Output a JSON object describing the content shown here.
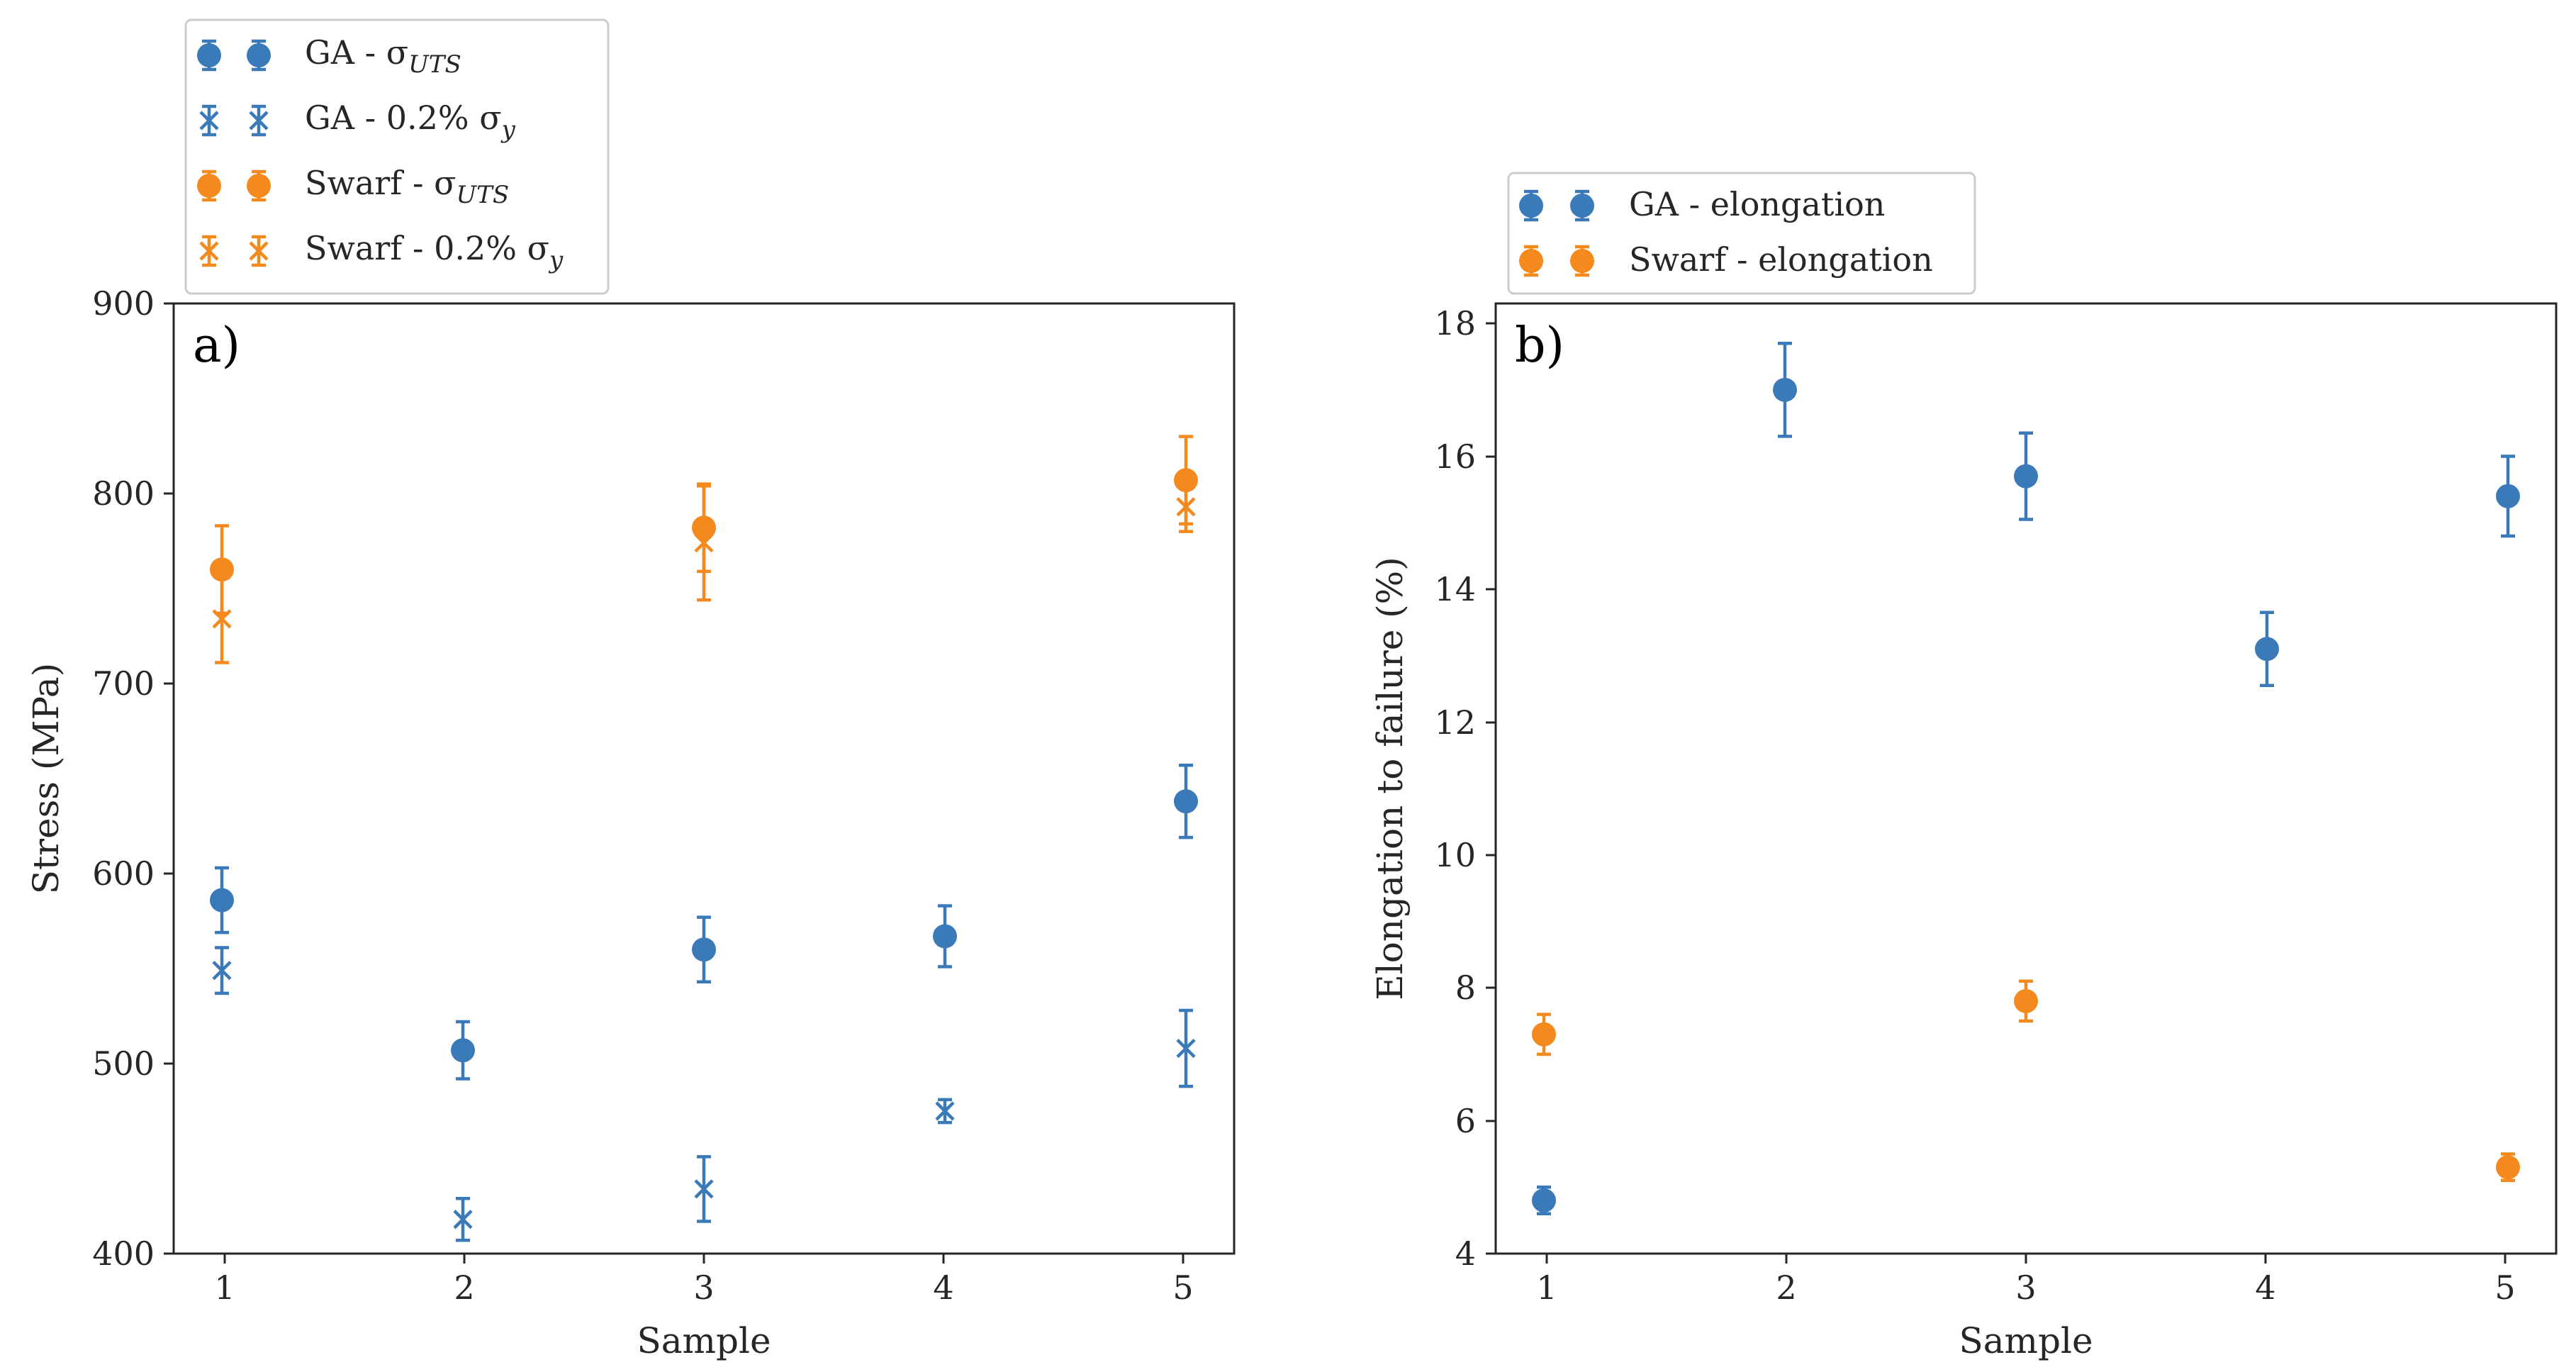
{
  "colors": {
    "ga": "#3a7ab8",
    "swarf": "#f48a1e",
    "axis": "#262626"
  },
  "chart_data": [
    {
      "type": "scatter",
      "panel_label": "a)",
      "xlabel": "Sample",
      "ylabel": "Stress (MPa)",
      "xlim": [
        0.8,
        5.2
      ],
      "ylim": [
        400,
        900
      ],
      "x_ticks": [
        "1",
        "2",
        "3",
        "4",
        "5"
      ],
      "y_ticks": [
        "400",
        "500",
        "600",
        "700",
        "800",
        "900"
      ],
      "legend_position": "above-left",
      "series": [
        {
          "name": "GA  - σ",
          "sub": "UTS",
          "marker": "circle",
          "color": "ga",
          "x": [
            1,
            2,
            3,
            4,
            5
          ],
          "values": [
            586,
            507,
            560,
            567,
            638
          ],
          "errors": [
            17,
            15,
            17,
            16,
            19
          ]
        },
        {
          "name": "GA - 0.2% σ",
          "sub": "y",
          "marker": "x",
          "color": "ga",
          "x": [
            1,
            2,
            3,
            4,
            5
          ],
          "values": [
            549,
            418,
            434,
            475,
            508
          ],
          "errors": [
            12,
            11,
            17,
            6,
            20
          ]
        },
        {
          "name": "Swarf  - σ",
          "sub": "UTS",
          "marker": "circle",
          "color": "swarf",
          "x": [
            1,
            3,
            5
          ],
          "values": [
            760,
            782,
            807
          ],
          "errors": [
            23,
            23,
            23
          ]
        },
        {
          "name": "Swarf - 0.2% σ",
          "sub": "y",
          "marker": "x",
          "color": "swarf",
          "x": [
            1,
            3,
            5
          ],
          "values": [
            734,
            774,
            793
          ],
          "errors": [
            23,
            30,
            13
          ]
        }
      ]
    },
    {
      "type": "scatter",
      "panel_label": "b)",
      "xlabel": "Sample",
      "ylabel": "Elongation to failure (%)",
      "xlim": [
        0.8,
        5.2
      ],
      "ylim": [
        4,
        18.3
      ],
      "x_ticks": [
        "1",
        "2",
        "3",
        "4",
        "5"
      ],
      "y_ticks": [
        "4",
        "6",
        "8",
        "10",
        "12",
        "14",
        "16",
        "18"
      ],
      "legend_position": "above-left",
      "series": [
        {
          "name": "GA - elongation",
          "sub": "",
          "marker": "circle",
          "color": "ga",
          "x": [
            1,
            2,
            3,
            4,
            5
          ],
          "values": [
            4.8,
            17.0,
            15.7,
            13.1,
            15.4
          ],
          "errors": [
            0.2,
            0.7,
            0.65,
            0.55,
            0.6
          ]
        },
        {
          "name": "Swarf - elongation",
          "sub": "",
          "marker": "circle",
          "color": "swarf",
          "x": [
            1,
            3,
            5
          ],
          "values": [
            7.3,
            7.8,
            5.3
          ],
          "errors": [
            0.3,
            0.3,
            0.2
          ]
        }
      ]
    }
  ]
}
